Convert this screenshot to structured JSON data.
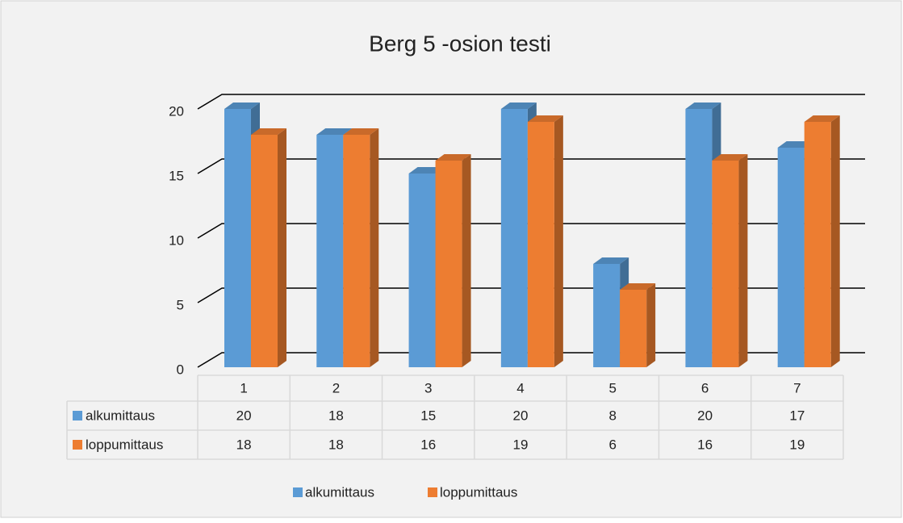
{
  "chart_data": {
    "type": "bar3d",
    "title": "Berg 5 -osion testi",
    "categories": [
      "1",
      "2",
      "3",
      "4",
      "5",
      "6",
      "7"
    ],
    "series": [
      {
        "name": "alkumittaus",
        "color": "#5b9bd5",
        "values": [
          20,
          18,
          15,
          20,
          8,
          20,
          17
        ]
      },
      {
        "name": "loppumittaus",
        "color": "#ed7d31",
        "values": [
          18,
          18,
          16,
          19,
          6,
          16,
          19
        ]
      }
    ],
    "ylim": [
      0,
      20
    ],
    "yticks": [
      0,
      5,
      10,
      15,
      20
    ],
    "grid": true,
    "legend": "bottom",
    "data_table": true
  }
}
